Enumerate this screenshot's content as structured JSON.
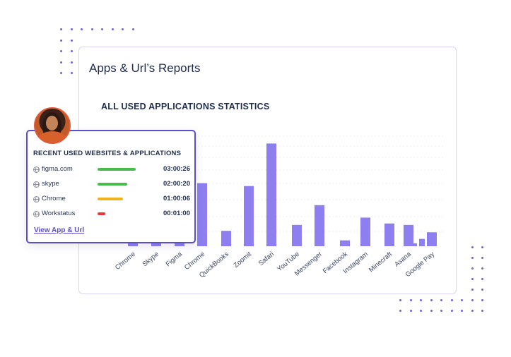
{
  "card": {
    "title": "Apps & Url’s Reports",
    "chart_title": "ALL USED APPLICATIONS STATISTICS"
  },
  "chart_data": {
    "type": "bar",
    "title": "ALL USED APPLICATIONS STATISTICS",
    "categories": [
      "Chrome",
      "Skype",
      "Figma",
      "Chrome",
      "QuickBooks",
      "Zoomit",
      "Safari",
      "YouTube",
      "Messenger",
      "Facebook",
      "Instagram",
      "Minecraft",
      "Asana",
      "Google Pay"
    ],
    "values": [
      24,
      25,
      25,
      86,
      21,
      82,
      140,
      29,
      56,
      8,
      39,
      31,
      29,
      19
    ],
    "extra_bars": [
      {
        "category": "Asana",
        "values": [
          4,
          10
        ]
      }
    ],
    "ylim": [
      0,
      150
    ],
    "grid": true,
    "bar_color": "#8d7ff0"
  },
  "popup": {
    "heading": "RECENT USED WEBSITES & APPLICATIONS",
    "rows": [
      {
        "name": "figma.com",
        "time": "03:00:26",
        "bar_color": "#4cbb4f",
        "fraction": 1.0
      },
      {
        "name": "skype",
        "time": "02:00:20",
        "bar_color": "#4cbb4f",
        "fraction": 0.78
      },
      {
        "name": "Chrome",
        "time": "01:00:06",
        "bar_color": "#f1b31c",
        "fraction": 0.66
      },
      {
        "name": "Workstatus",
        "time": "00:01:00",
        "bar_color": "#e53a3a",
        "fraction": 0.2
      }
    ],
    "view_link": "View App & Url"
  },
  "icons": {
    "row_icon": "globe-icon",
    "avatar": "user-avatar"
  },
  "colors": {
    "accent": "#5b4fcf",
    "dot": "#6f63d8"
  }
}
